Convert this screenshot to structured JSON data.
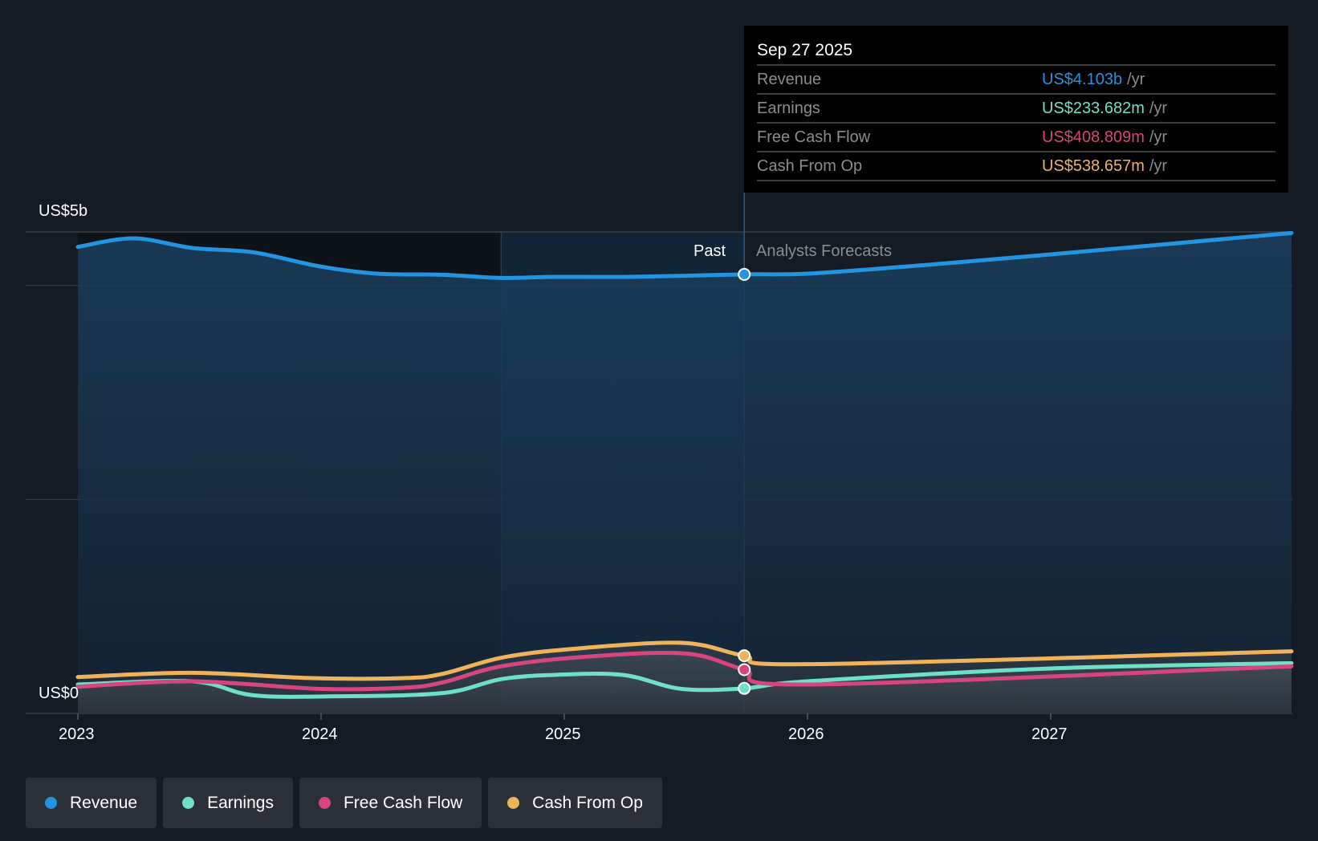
{
  "chart_data": {
    "type": "line",
    "y_axis": {
      "top_label": "US$5b",
      "bottom_label": "US$0",
      "unit": "US$ billions",
      "ylim": [
        0,
        4.5
      ],
      "gridlines": [
        0,
        2,
        4,
        4.5
      ]
    },
    "x_axis": {
      "tick_labels": [
        "2023",
        "2024",
        "2025",
        "2026",
        "2027"
      ],
      "ticks": [
        2023,
        2024,
        2025,
        2026,
        2027
      ],
      "xlim": [
        2023,
        2027.99
      ]
    },
    "divider": {
      "x": 2025.74,
      "past_label": "Past",
      "forecast_label": "Analysts Forecasts",
      "highlight_start": 2024.74
    },
    "series": [
      {
        "name": "Revenue",
        "color": "#2394e0",
        "points": [
          [
            2023,
            4.36
          ],
          [
            2023.23,
            4.44
          ],
          [
            2023.47,
            4.35
          ],
          [
            2023.72,
            4.31
          ],
          [
            2023.99,
            4.18
          ],
          [
            2024.23,
            4.11
          ],
          [
            2024.5,
            4.1
          ],
          [
            2024.74,
            4.07
          ],
          [
            2024.96,
            4.08
          ],
          [
            2025.27,
            4.08
          ],
          [
            2025.74,
            4.103
          ],
          [
            2026.0,
            4.11
          ],
          [
            2026.48,
            4.19
          ],
          [
            2027.0,
            4.29
          ],
          [
            2027.99,
            4.49
          ]
        ]
      },
      {
        "name": "Earnings",
        "color": "#6ee0c8",
        "points": [
          [
            2023,
            0.27
          ],
          [
            2023.47,
            0.3
          ],
          [
            2023.72,
            0.17
          ],
          [
            2024.06,
            0.16
          ],
          [
            2024.5,
            0.19
          ],
          [
            2024.74,
            0.32
          ],
          [
            2024.96,
            0.36
          ],
          [
            2025.24,
            0.36
          ],
          [
            2025.48,
            0.23
          ],
          [
            2025.74,
            0.234
          ],
          [
            2026.0,
            0.3
          ],
          [
            2027.0,
            0.42
          ],
          [
            2027.99,
            0.47
          ]
        ]
      },
      {
        "name": "Free Cash Flow",
        "color": "#d6457e",
        "points": [
          [
            2023,
            0.25
          ],
          [
            2023.47,
            0.3
          ],
          [
            2023.99,
            0.23
          ],
          [
            2024.34,
            0.24
          ],
          [
            2024.5,
            0.29
          ],
          [
            2024.74,
            0.44
          ],
          [
            2025.09,
            0.53
          ],
          [
            2025.5,
            0.56
          ],
          [
            2025.74,
            0.409
          ],
          [
            2026.0,
            0.27
          ],
          [
            2027.99,
            0.44
          ]
        ]
      },
      {
        "name": "Cash From Op",
        "color": "#f0b35a",
        "points": [
          [
            2023,
            0.34
          ],
          [
            2023.47,
            0.38
          ],
          [
            2023.96,
            0.33
          ],
          [
            2024.34,
            0.33
          ],
          [
            2024.5,
            0.37
          ],
          [
            2024.74,
            0.52
          ],
          [
            2025.02,
            0.6
          ],
          [
            2025.48,
            0.66
          ],
          [
            2025.74,
            0.539
          ],
          [
            2026.0,
            0.46
          ],
          [
            2027.99,
            0.58
          ]
        ]
      }
    ]
  },
  "tooltip": {
    "date": "Sep 27 2025",
    "unit": "/yr",
    "rows": [
      {
        "label": "Revenue",
        "value": "US$4.103b",
        "color": "#2394e0"
      },
      {
        "label": "Earnings",
        "value": "US$233.682m",
        "color": "#6ee0c8"
      },
      {
        "label": "Free Cash Flow",
        "value": "US$408.809m",
        "color": "#d6457e"
      },
      {
        "label": "Cash From Op",
        "value": "US$538.657m",
        "color": "#f0b35a"
      }
    ]
  },
  "legend": [
    {
      "label": "Revenue",
      "color": "#2394e0"
    },
    {
      "label": "Earnings",
      "color": "#6ee0c8"
    },
    {
      "label": "Free Cash Flow",
      "color": "#d6457e"
    },
    {
      "label": "Cash From Op",
      "color": "#f0b35a"
    }
  ]
}
